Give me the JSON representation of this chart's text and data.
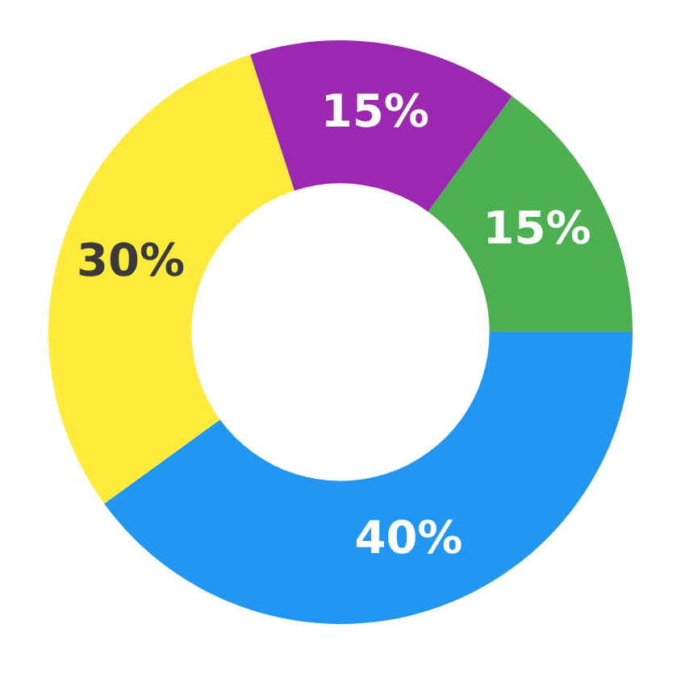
{
  "chart_data": {
    "type": "donut",
    "categories": [
      null,
      null,
      null,
      null
    ],
    "values": [
      40,
      30,
      15,
      15
    ],
    "colors": [
      "#2196f3",
      "#ffeb3b",
      "#9c27b0",
      "#4caf50"
    ],
    "value_labels": [
      "40%",
      "30%",
      "15%",
      "15%"
    ],
    "legend": false
  }
}
